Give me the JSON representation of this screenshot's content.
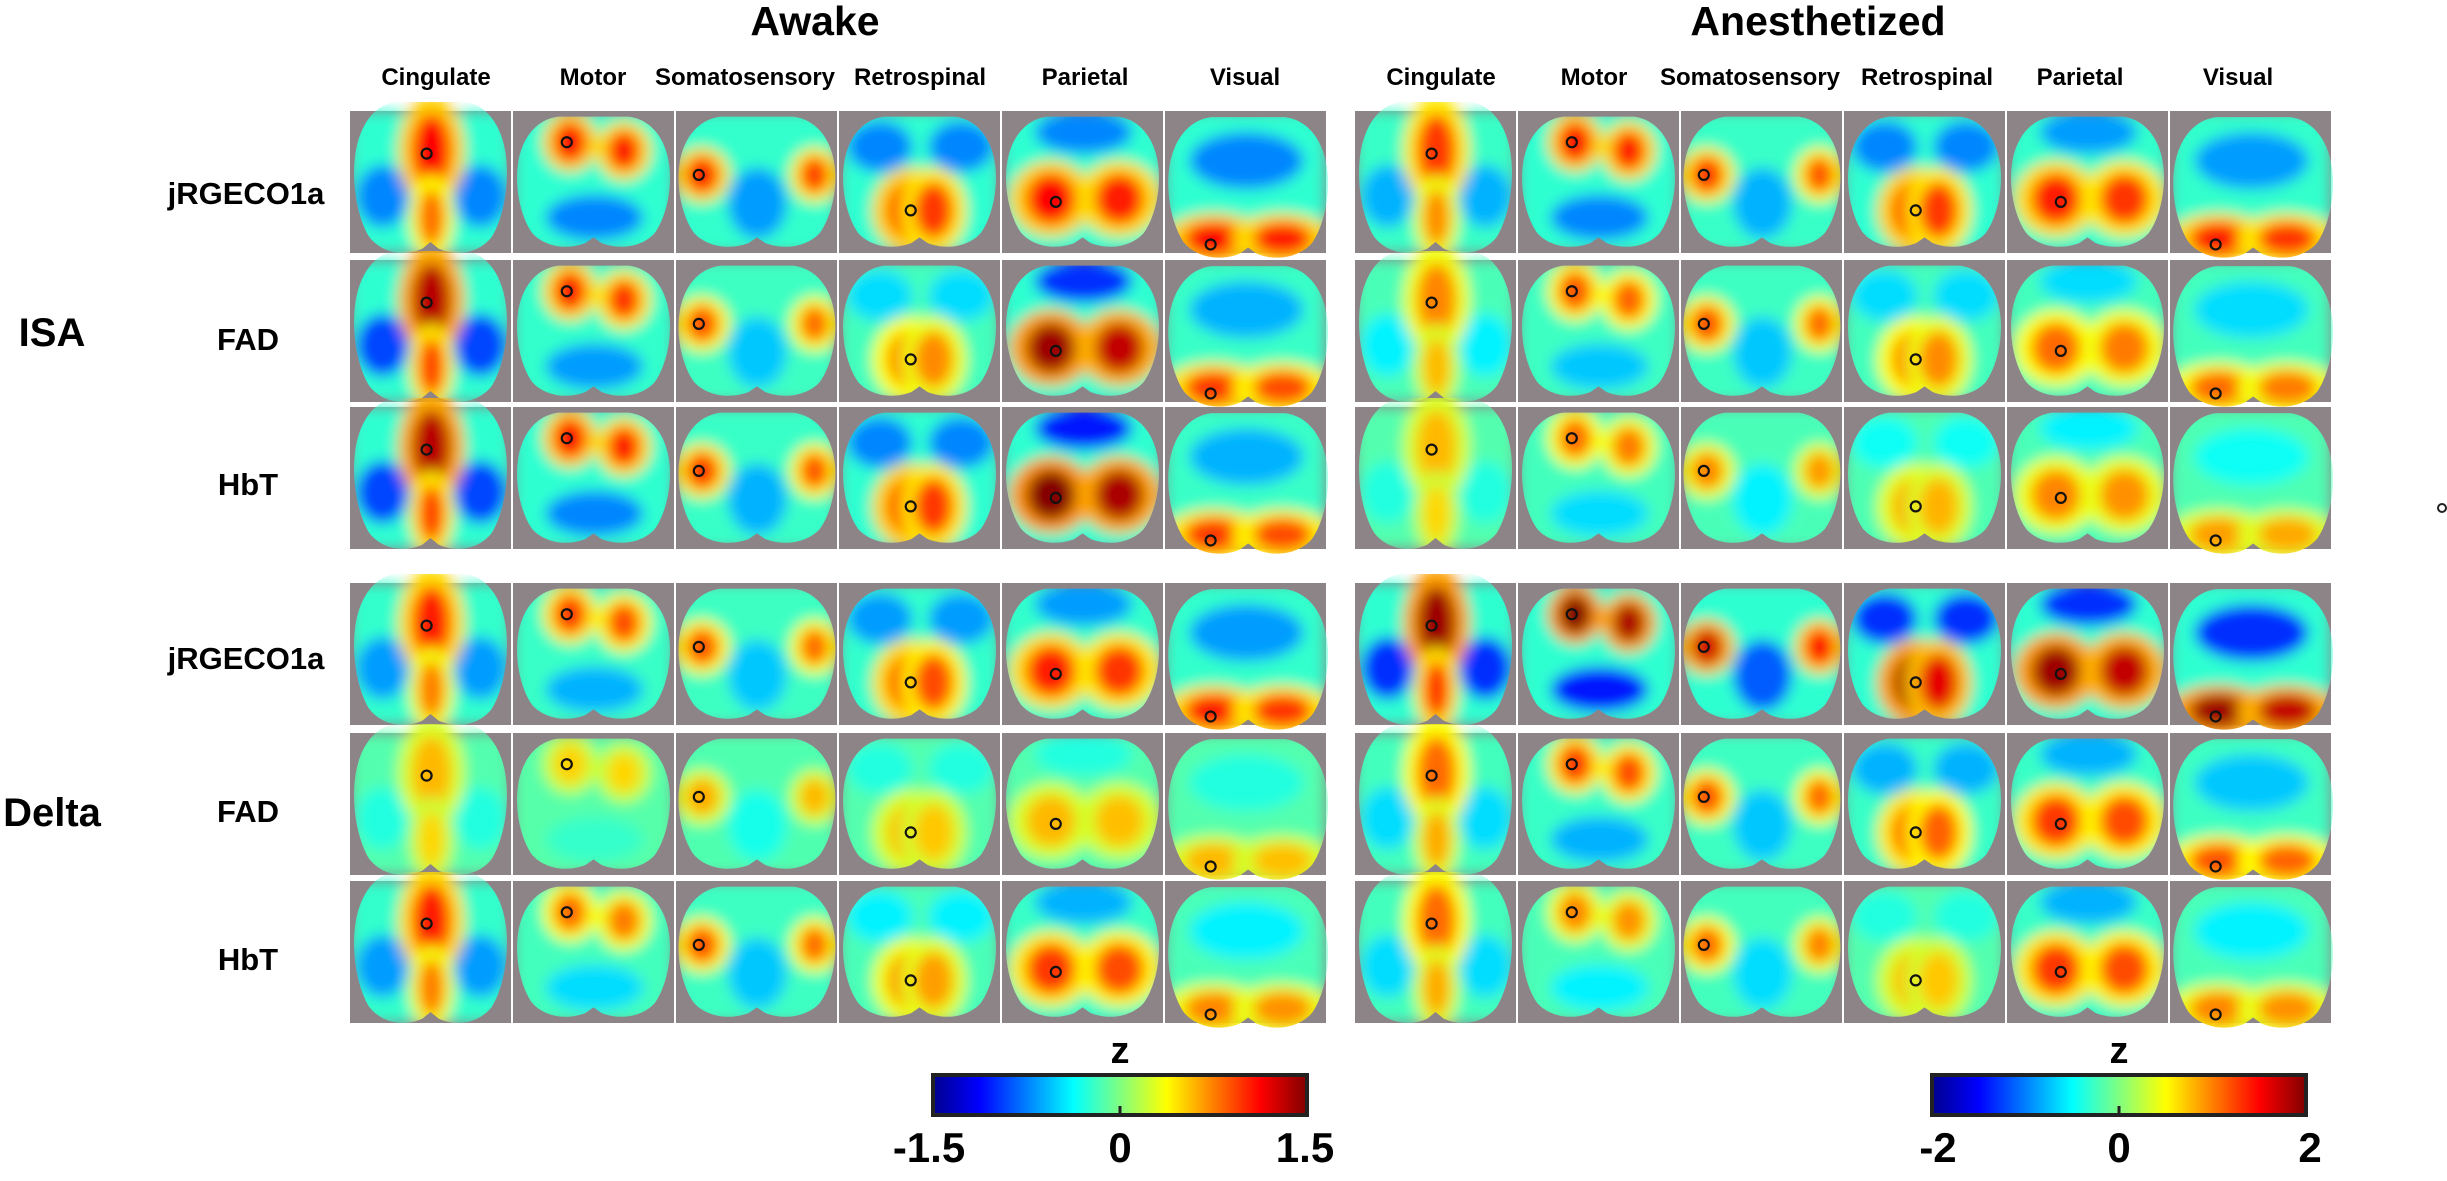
{
  "chart_data": {
    "type": "heatmap",
    "description_type": "seed-based correlation maps (z) of mouse cortex",
    "conditions": [
      {
        "name": "Awake",
        "colorbar": {
          "label": "z",
          "min": -1.5,
          "max": 1.5,
          "ticks": [
            "-1.5",
            "0",
            "1.5"
          ]
        }
      },
      {
        "name": "Anesthetized",
        "colorbar": {
          "label": "z",
          "min": -2,
          "max": 2,
          "ticks": [
            "-2",
            "0",
            "2"
          ]
        }
      }
    ],
    "regions": [
      "Cingulate",
      "Motor",
      "Somatosensory",
      "Retrospinal",
      "Parietal",
      "Visual"
    ],
    "bands": [
      {
        "name": "ISA",
        "contrasts": [
          "jRGECO1a",
          "FAD",
          "HbT"
        ]
      },
      {
        "name": "Delta",
        "contrasts": [
          "jRGECO1a",
          "FAD",
          "HbT"
        ]
      }
    ],
    "colormap": "jet",
    "patterns": {
      "Cingulate": "midline",
      "Motor": "motor",
      "Somatosensory": "soma",
      "Retrospinal": "retro",
      "Parietal": "parietal",
      "Visual": "visual"
    },
    "strength": {
      "Awake": {
        "ISA": {
          "jRGECO1a": [
            1.0,
            1.0,
            0.9,
            1.0,
            1.0,
            1.0
          ],
          "FAD": [
            1.3,
            0.9,
            0.7,
            0.6,
            1.4,
            0.8
          ],
          "HbT": [
            1.3,
            1.0,
            0.8,
            1.0,
            1.5,
            0.8
          ]
        },
        "Delta": {
          "jRGECO1a": [
            0.9,
            0.8,
            0.7,
            0.9,
            0.9,
            0.9
          ],
          "FAD": [
            0.3,
            0.2,
            0.35,
            0.3,
            0.3,
            0.3
          ],
          "HbT": [
            0.9,
            0.6,
            0.7,
            0.5,
            0.8,
            0.5
          ]
        }
      },
      "Anesthetized": {
        "ISA": {
          "jRGECO1a": [
            0.8,
            1.0,
            0.8,
            1.0,
            0.9,
            0.9
          ],
          "FAD": [
            0.5,
            0.7,
            0.7,
            0.6,
            0.6,
            0.6
          ],
          "HbT": [
            0.3,
            0.6,
            0.5,
            0.4,
            0.5,
            0.4
          ]
        },
        "Delta": {
          "jRGECO1a": [
            1.4,
            1.5,
            1.2,
            1.4,
            1.4,
            1.4
          ],
          "FAD": [
            0.6,
            0.8,
            0.7,
            0.8,
            0.8,
            0.7
          ],
          "HbT": [
            0.6,
            0.5,
            0.6,
            0.3,
            0.8,
            0.5
          ]
        }
      }
    }
  }
}
